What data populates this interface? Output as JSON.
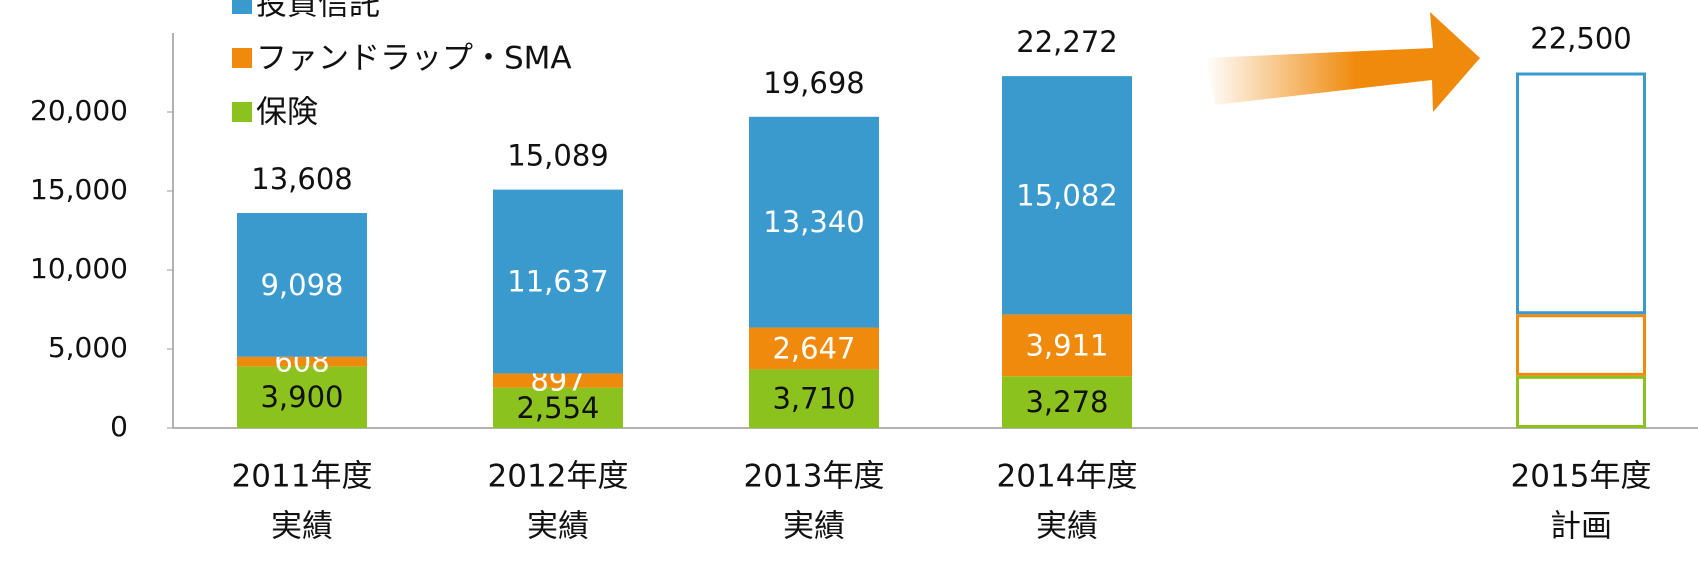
{
  "chart_data": {
    "type": "stacked_bar",
    "categories": [
      [
        "2011年度",
        "実績"
      ],
      [
        "2012年度",
        "実績"
      ],
      [
        "2013年度",
        "実績"
      ],
      [
        "2014年度",
        "実績"
      ],
      [
        "2015年度",
        "計画"
      ]
    ],
    "series": [
      {
        "name": "保険",
        "color": "#8cc21e",
        "label_color": "#111111",
        "values": [
          3900,
          2554,
          3710,
          3278,
          3300
        ],
        "value_labels": [
          "3,900",
          "2,554",
          "3,710",
          "3,278",
          null
        ]
      },
      {
        "name": "ファンドラップ・SMA",
        "color": "#ef8a0c",
        "label_color": "#ffffff",
        "values": [
          608,
          897,
          2647,
          3911,
          3900
        ],
        "value_labels": [
          "608",
          "897",
          "2,647",
          "3,911",
          null
        ]
      },
      {
        "name": "投資信託",
        "color": "#3a9acd",
        "label_color": "#ffffff",
        "values": [
          9098,
          11637,
          13340,
          15082,
          15300
        ],
        "value_labels": [
          "9,098",
          "11,637",
          "13,340",
          "15,082",
          null
        ]
      }
    ],
    "totals": [
      13608,
      15089,
      19698,
      22272,
      22500
    ],
    "total_labels": [
      "13,608",
      "15,089",
      "19,698",
      "22,272",
      "22,500"
    ],
    "hollow": [
      false,
      false,
      false,
      false,
      true
    ],
    "ylim": [
      0,
      25000
    ],
    "yticks": [
      0,
      {
        "value": 5000,
        "label": "5,000"
      },
      {
        "value": 10000,
        "label": "10,000"
      },
      {
        "value": 15000,
        "label": "15,000"
      },
      {
        "value": 20000,
        "label": "20,000"
      }
    ]
  }
}
